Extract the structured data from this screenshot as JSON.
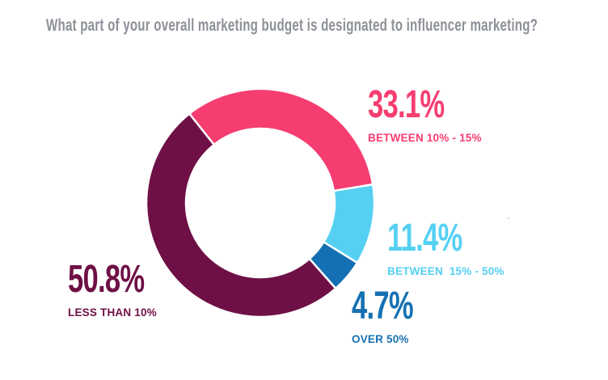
{
  "page": {
    "background": "#ffffff"
  },
  "chart_data": {
    "type": "pie",
    "subtype": "donut",
    "title": "What part of your overall marketing budget is designated to influencer marketing?",
    "title_color": "#8c9097",
    "legend_position": "callout-labels-around-donut",
    "grid": false,
    "start_angle_deg": 128.5,
    "direction": "clockwise",
    "segments": [
      {
        "display": "33.1%",
        "value_pct": 33.1,
        "label": "BETWEEN 10% - 15%",
        "color": "#f63d70"
      },
      {
        "display": "11.4%",
        "value_pct": 11.4,
        "label": "BETWEEN  15% - 50%",
        "color": "#55d0f2"
      },
      {
        "display": "4.7%",
        "value_pct": 4.7,
        "label": "OVER 50%",
        "color": "#1470b2"
      },
      {
        "display": "50.8%",
        "value_pct": 50.8,
        "label": "LESS THAN 10%",
        "color": "#6e1045"
      }
    ]
  }
}
